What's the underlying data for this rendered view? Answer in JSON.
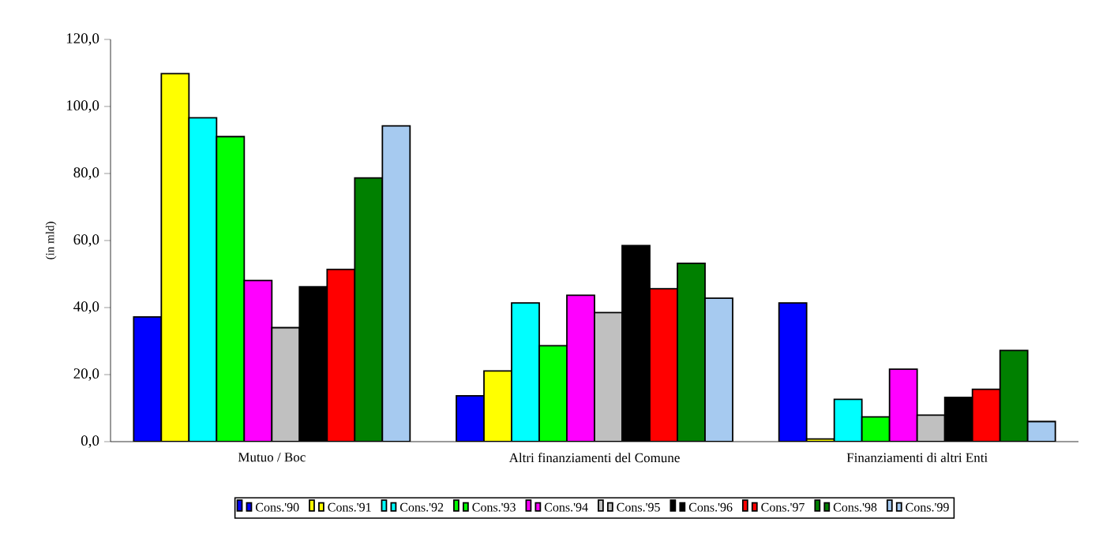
{
  "chart_data": {
    "type": "bar",
    "ylabel": "(in mld)",
    "categories": [
      "Mutuo / Boc",
      "Altri finanziamenti del Comune",
      "Finanziamenti di altri Enti"
    ],
    "ylim": [
      0,
      120
    ],
    "yticks": [
      {
        "value": 0,
        "label": "0,0"
      },
      {
        "value": 20,
        "label": "20,0"
      },
      {
        "value": 40,
        "label": "40,0"
      },
      {
        "value": 60,
        "label": "60,0"
      },
      {
        "value": 80,
        "label": "80,0"
      },
      {
        "value": 100,
        "label": "100,0"
      },
      {
        "value": 120,
        "label": "120,0"
      }
    ],
    "grid": false,
    "legend": "bottom",
    "series": [
      {
        "name": "Cons.'90",
        "color": "#0000ff",
        "values": [
          37.2,
          13.7,
          41.4
        ]
      },
      {
        "name": "Cons.'91",
        "color": "#ffff00",
        "values": [
          109.8,
          21.1,
          0.8
        ]
      },
      {
        "name": "Cons.'92",
        "color": "#00ffff",
        "values": [
          96.6,
          41.4,
          12.6
        ]
      },
      {
        "name": "Cons.'93",
        "color": "#00ff00",
        "values": [
          91.0,
          28.6,
          7.4
        ]
      },
      {
        "name": "Cons.'94",
        "color": "#ff00ff",
        "values": [
          48.1,
          43.7,
          21.6
        ]
      },
      {
        "name": "Cons.'95",
        "color": "#c0c0c0",
        "values": [
          34.0,
          38.5,
          7.9
        ]
      },
      {
        "name": "Cons.'96",
        "color": "#000000",
        "values": [
          46.2,
          58.5,
          13.2
        ]
      },
      {
        "name": "Cons.'97",
        "color": "#ff0000",
        "values": [
          51.4,
          45.6,
          15.6
        ]
      },
      {
        "name": "Cons.'98",
        "color": "#008000",
        "values": [
          78.7,
          53.2,
          27.2
        ]
      },
      {
        "name": "Cons.'99",
        "color": "#a6caf0",
        "values": [
          94.2,
          42.8,
          6.0
        ]
      }
    ]
  }
}
